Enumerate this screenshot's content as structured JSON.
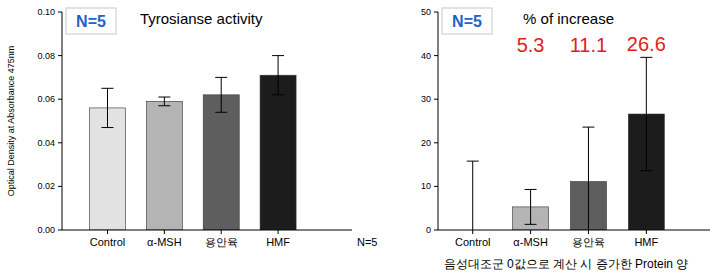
{
  "chart_data": [
    {
      "type": "bar",
      "title": "Tyrosianse activity",
      "y_label": "Optical Density at Absorbance 475nm",
      "annotations": [
        "N=5",
        "N=5"
      ],
      "categories": [
        "Control",
        "α-MSH",
        "용안육",
        "HMF"
      ],
      "values": [
        0.056,
        0.059,
        0.062,
        0.071
      ],
      "errors": [
        0.009,
        0.002,
        0.008,
        0.009
      ],
      "colors": [
        "#e2e2e2",
        "#b4b4b4",
        "#5e5e5e",
        "#1c1c1c"
      ],
      "ylim": [
        0,
        0.1
      ],
      "yticks": [
        {
          "value": 0,
          "label": "0.00"
        },
        {
          "value": 0.02,
          "label": "0.02"
        },
        {
          "value": 0.04,
          "label": "0.04"
        },
        {
          "value": 0.06,
          "label": "0.06"
        },
        {
          "value": 0.08,
          "label": "0.08"
        },
        {
          "value": 0.1,
          "label": "0.10"
        }
      ],
      "grid": false
    },
    {
      "type": "bar",
      "title": "% of increase",
      "x_label": "음성대조군 0값으로 계산 시 증가한 Protein 양",
      "annotations": [
        "N=5"
      ],
      "categories": [
        "Control",
        "α-MSH",
        "용안육",
        "HMF"
      ],
      "values": [
        0,
        5.3,
        11.1,
        26.6
      ],
      "errors": [
        15.8,
        4,
        12.5,
        13
      ],
      "colors": [
        "#e2e2e2",
        "#b4b4b4",
        "#5e5e5e",
        "#1c1c1c"
      ],
      "data_labels": true,
      "value_labels": [
        null,
        "5.3",
        "11.1",
        "26.6"
      ],
      "ylim": [
        0,
        50
      ],
      "yticks": [
        0,
        10,
        20,
        30,
        40,
        50
      ],
      "grid": false
    }
  ]
}
